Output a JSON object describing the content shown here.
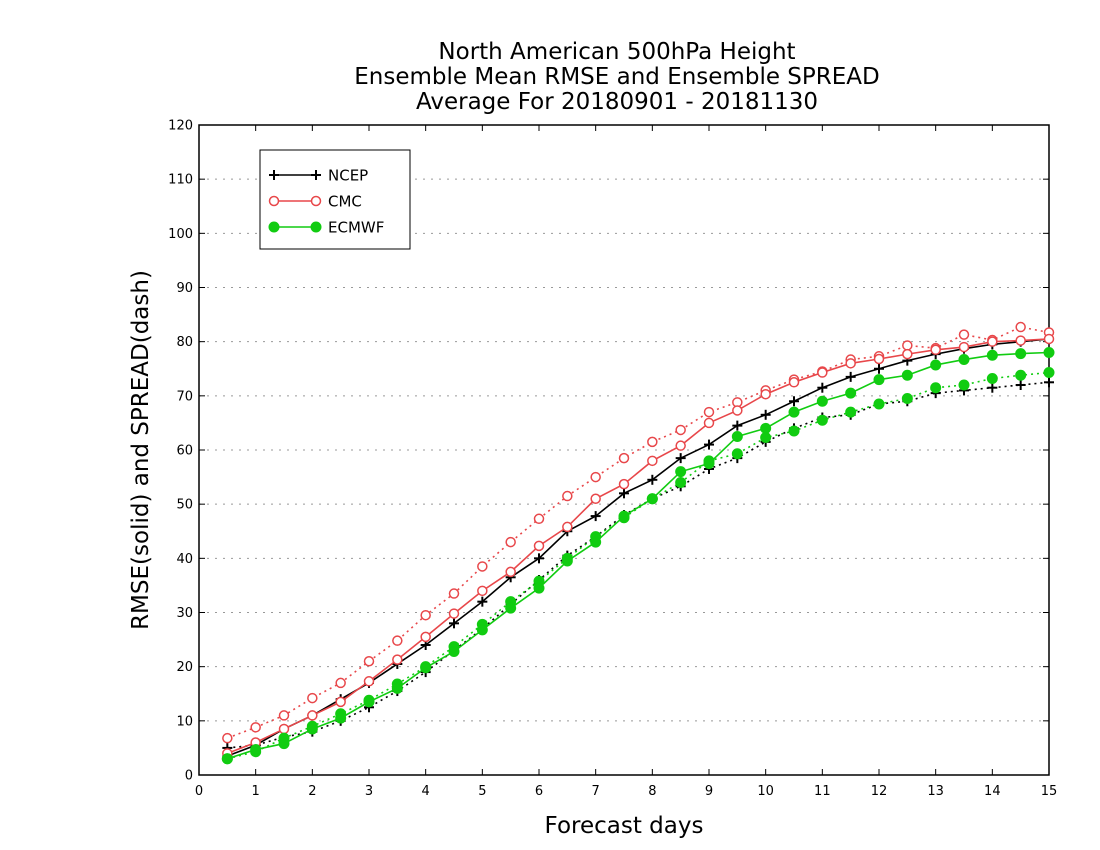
{
  "chart_data": {
    "type": "line",
    "title": [
      "North American 500hPa Height",
      "Ensemble Mean RMSE and Ensemble SPREAD",
      "Average For 20180901 - 20181130"
    ],
    "xlabel": "Forecast days",
    "ylabel": "RMSE(solid) and SPREAD(dash)",
    "xlim": [
      0,
      15
    ],
    "ylim": [
      0,
      120
    ],
    "xticks": [
      0,
      1,
      2,
      3,
      4,
      5,
      6,
      7,
      8,
      9,
      10,
      11,
      12,
      13,
      14,
      15
    ],
    "yticks": [
      0,
      10,
      20,
      30,
      40,
      50,
      60,
      70,
      80,
      90,
      100,
      110,
      120
    ],
    "grid": "horizontal dotted",
    "legend_placement": "top-left",
    "x": [
      0.5,
      1,
      1.5,
      2,
      2.5,
      3,
      3.5,
      4,
      4.5,
      5,
      5.5,
      6,
      6.5,
      7,
      7.5,
      8,
      8.5,
      9,
      9.5,
      10,
      10.5,
      11,
      11.5,
      12,
      12.5,
      13,
      13.5,
      14,
      14.5,
      15
    ],
    "series": [
      {
        "name": "NCEP",
        "color": "#000000",
        "marker": "plus",
        "rmse": [
          3.5,
          5.5,
          8.5,
          11,
          14,
          17,
          20.5,
          24,
          28,
          32,
          36.5,
          40,
          45,
          47.8,
          52,
          54.5,
          58.5,
          61,
          64.5,
          66.5,
          69,
          71.5,
          73.5,
          75,
          76.5,
          77.7,
          78.7,
          79.5,
          80,
          80.5
        ],
        "spread": [
          5,
          5.5,
          7,
          8,
          10,
          12.5,
          15.5,
          19,
          23,
          27,
          31.5,
          36,
          40.5,
          44,
          48,
          51,
          53.3,
          56.5,
          58.5,
          61.5,
          64,
          66,
          66.5,
          68.5,
          69,
          70.5,
          71,
          71.5,
          72,
          72.5
        ]
      },
      {
        "name": "CMC",
        "color": "#e8474a",
        "marker": "open-circle",
        "rmse": [
          4,
          6,
          8.5,
          11,
          13.5,
          17.3,
          21.3,
          25.5,
          29.8,
          34,
          37.5,
          42.3,
          45.8,
          51,
          53.7,
          58,
          60.8,
          65,
          67.3,
          70.3,
          72.5,
          74.3,
          76,
          76.8,
          77.7,
          78.5,
          79,
          80,
          80.2,
          80.5
        ],
        "spread": [
          6.8,
          8.8,
          11,
          14.2,
          17,
          21,
          24.8,
          29.5,
          33.5,
          38.5,
          43,
          47.3,
          51.5,
          55,
          58.5,
          61.5,
          63.7,
          67,
          68.8,
          71,
          73,
          74.5,
          76.7,
          77.3,
          79.3,
          78.8,
          81.3,
          80.3,
          82.7,
          81.7
        ]
      },
      {
        "name": "ECMWF",
        "color": "#11cc11",
        "marker": "filled-circle",
        "rmse": [
          3,
          4.7,
          5.8,
          8.5,
          10.5,
          13.5,
          16,
          19.8,
          22.8,
          26.8,
          30.8,
          34.5,
          39.5,
          43,
          47.8,
          51,
          56,
          57.5,
          62.5,
          64,
          67,
          69,
          70.5,
          73,
          73.8,
          75.7,
          76.7,
          77.5,
          77.8,
          78
        ],
        "spread": [
          3,
          4.3,
          6.8,
          9,
          11.3,
          13.8,
          16.8,
          20,
          23.7,
          27.8,
          32,
          35.8,
          40,
          44,
          47.5,
          51,
          54,
          58,
          59.3,
          62.3,
          63.5,
          65.5,
          67,
          68.5,
          69.5,
          71.5,
          72,
          73.2,
          73.8,
          74.3
        ]
      }
    ]
  }
}
